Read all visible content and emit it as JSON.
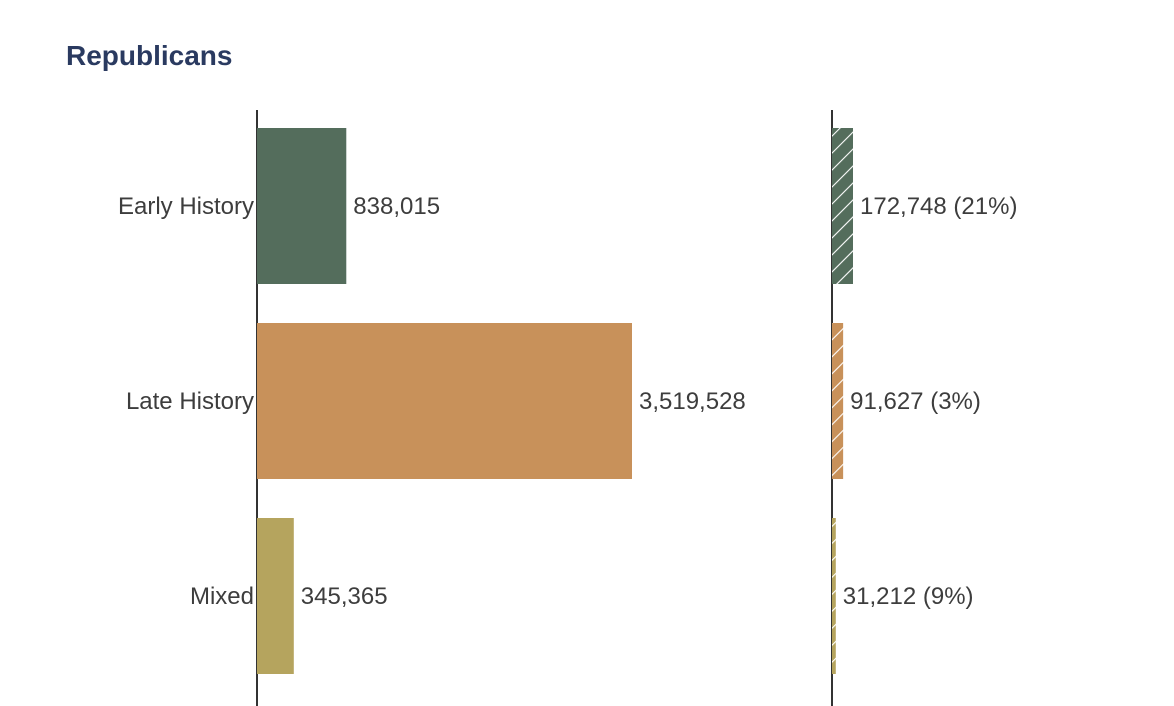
{
  "chart_data": {
    "type": "bar",
    "title": "Republicans",
    "orientation": "horizontal",
    "categories": [
      "Early History",
      "Late History",
      "Mixed"
    ],
    "colors": [
      "#546d5c",
      "#c8915a",
      "#b5a45e"
    ],
    "series": [
      {
        "values": [
          838015,
          3519528,
          345365
        ],
        "labels": [
          "838,015",
          "3,519,528",
          "345,365"
        ],
        "style": "solid"
      },
      {
        "values": [
          172748,
          91627,
          31212
        ],
        "percents": [
          21,
          3,
          9
        ],
        "labels": [
          "172,748 (21%)",
          "91,627 (3%)",
          "31,212 (9%)"
        ],
        "style": "hatched"
      }
    ]
  }
}
